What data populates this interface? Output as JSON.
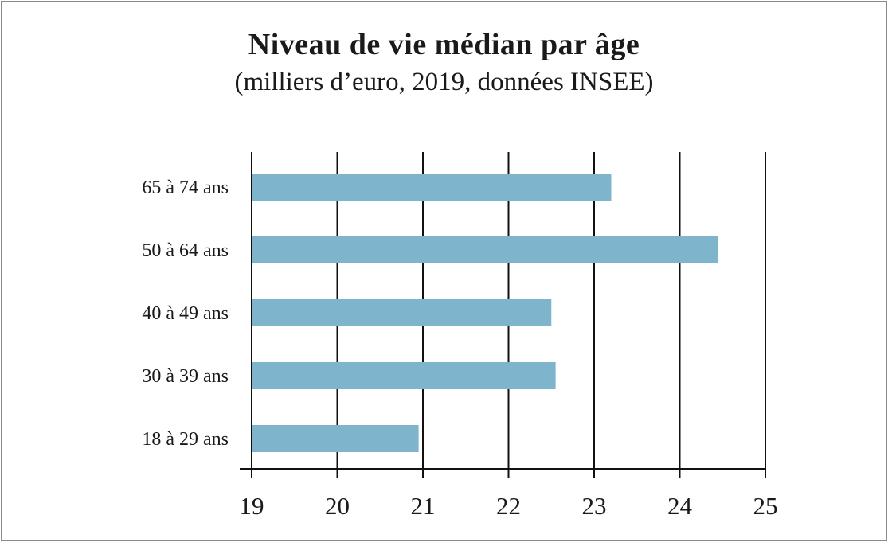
{
  "chart_data": {
    "type": "bar",
    "orientation": "horizontal",
    "title": "Niveau de vie médian par âge",
    "subtitle": "(milliers d’euro, 2019, données INSEE)",
    "categories": [
      "65 à 74 ans",
      "50 à 64 ans",
      "40 à 49 ans",
      "30 à 39 ans",
      "18 à 29 ans"
    ],
    "values": [
      23.2,
      24.45,
      22.5,
      22.55,
      20.95
    ],
    "xlim": [
      19,
      25
    ],
    "xticks": [
      "19",
      "20",
      "21",
      "22",
      "23",
      "24",
      "25"
    ],
    "grid": true,
    "colors": {
      "bar": "#7fb5cc",
      "grid": "#111111",
      "text": "#1a1a1a"
    }
  }
}
